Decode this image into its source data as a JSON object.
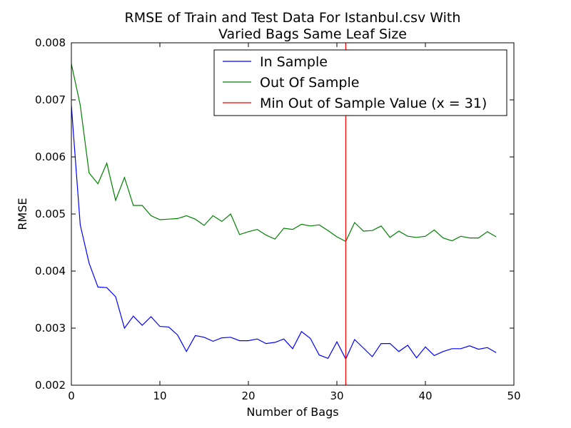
{
  "chart_data": {
    "type": "line",
    "title_lines": [
      "RMSE of Train and Test Data For Istanbul.csv With",
      "Varied Bags Same Leaf Size"
    ],
    "xlabel": "Number of Bags",
    "ylabel": "RMSE",
    "xlim": [
      0,
      50
    ],
    "ylim": [
      0.002,
      0.008
    ],
    "xticks": [
      0,
      10,
      20,
      30,
      40,
      50
    ],
    "xtick_labels": [
      "0",
      "10",
      "20",
      "30",
      "40",
      "50"
    ],
    "yticks": [
      0.002,
      0.003,
      0.004,
      0.005,
      0.006,
      0.007,
      0.008
    ],
    "ytick_labels": [
      "0.002",
      "0.003",
      "0.004",
      "0.005",
      "0.006",
      "0.007",
      "0.008"
    ],
    "grid": false,
    "legend_position": "top-right",
    "x": [
      0,
      1,
      2,
      3,
      4,
      5,
      6,
      7,
      8,
      9,
      10,
      11,
      12,
      13,
      14,
      15,
      16,
      17,
      18,
      19,
      20,
      21,
      22,
      23,
      24,
      25,
      26,
      27,
      28,
      29,
      30,
      31,
      32,
      33,
      34,
      35,
      36,
      37,
      38,
      39,
      40,
      41,
      42,
      43,
      44,
      45,
      46,
      47,
      48
    ],
    "series": [
      {
        "name": "In Sample",
        "color": "#0000ff",
        "values": [
          0.0069,
          0.00481,
          0.00414,
          0.00372,
          0.00371,
          0.00355,
          0.003,
          0.00321,
          0.00305,
          0.0032,
          0.00303,
          0.00302,
          0.00288,
          0.00259,
          0.00287,
          0.00284,
          0.00277,
          0.00283,
          0.00284,
          0.00278,
          0.00278,
          0.00281,
          0.00273,
          0.00275,
          0.00281,
          0.00264,
          0.00294,
          0.00282,
          0.00253,
          0.00247,
          0.00276,
          0.00246,
          0.0028,
          0.00265,
          0.0025,
          0.00273,
          0.00273,
          0.00259,
          0.0027,
          0.00248,
          0.00267,
          0.00252,
          0.00259,
          0.00264,
          0.00264,
          0.00269,
          0.00263,
          0.00266,
          0.00257
        ]
      },
      {
        "name": "Out Of Sample",
        "color": "#008000",
        "values": [
          0.00763,
          0.00691,
          0.00572,
          0.00553,
          0.00589,
          0.00524,
          0.00564,
          0.00515,
          0.00515,
          0.00497,
          0.0049,
          0.00491,
          0.00492,
          0.00497,
          0.00491,
          0.0048,
          0.00497,
          0.00487,
          0.005,
          0.00464,
          0.00469,
          0.00473,
          0.00463,
          0.00456,
          0.00475,
          0.00473,
          0.00482,
          0.00479,
          0.00481,
          0.00471,
          0.0046,
          0.00452,
          0.00485,
          0.0047,
          0.00471,
          0.00479,
          0.00459,
          0.0047,
          0.00461,
          0.00459,
          0.00461,
          0.00472,
          0.00458,
          0.00453,
          0.00461,
          0.00458,
          0.00458,
          0.00469,
          0.0046
        ]
      }
    ],
    "vline": {
      "name": "Min Out of Sample Value (x = 31)",
      "color": "#ff0000",
      "x": 31
    }
  }
}
